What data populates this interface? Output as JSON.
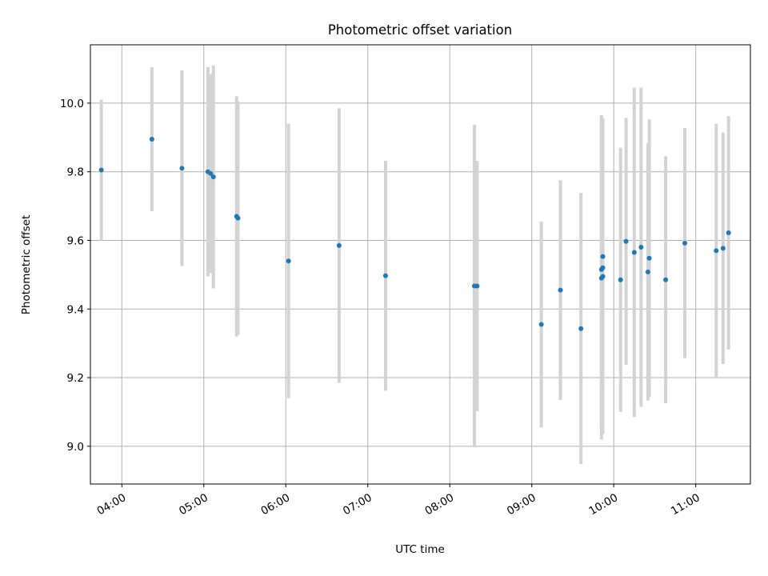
{
  "chart_data": {
    "type": "scatter",
    "title": "Photometric offset variation",
    "xlabel": "UTC time",
    "ylabel": "Photometric offset",
    "xlim": [
      "03:37",
      "11:40"
    ],
    "ylim": [
      8.89,
      10.17
    ],
    "grid": true,
    "x_ticks": [
      "04:00",
      "05:00",
      "06:00",
      "07:00",
      "08:00",
      "09:00",
      "10:00",
      "11:00"
    ],
    "y_ticks": [
      "9.0",
      "9.2",
      "9.4",
      "9.6",
      "9.8",
      "10.0"
    ],
    "colors": {
      "points": "#1f77b4",
      "errorbars": "#d3d3d3",
      "grid": "#b0b0b0"
    },
    "series": [
      {
        "points": [
          {
            "x": "03:45",
            "y": 9.805,
            "err": 0.205
          },
          {
            "x": "04:22",
            "y": 9.895,
            "err": 0.21
          },
          {
            "x": "04:44",
            "y": 9.81,
            "err": 0.285
          },
          {
            "x": "05:03",
            "y": 9.8,
            "err": 0.305
          },
          {
            "x": "05:05",
            "y": 9.795,
            "err": 0.29
          },
          {
            "x": "05:07",
            "y": 9.785,
            "err": 0.325
          },
          {
            "x": "05:24",
            "y": 9.67,
            "err": 0.35
          },
          {
            "x": "05:25",
            "y": 9.665,
            "err": 0.34
          },
          {
            "x": "06:02",
            "y": 9.54,
            "err": 0.4
          },
          {
            "x": "06:39",
            "y": 9.585,
            "err": 0.4
          },
          {
            "x": "07:13",
            "y": 9.497,
            "err": 0.335
          },
          {
            "x": "08:18",
            "y": 9.467,
            "err": 0.47
          },
          {
            "x": "08:20",
            "y": 9.467,
            "err": 0.365
          },
          {
            "x": "09:07",
            "y": 9.355,
            "err": 0.3
          },
          {
            "x": "09:21",
            "y": 9.455,
            "err": 0.32
          },
          {
            "x": "09:36",
            "y": 9.343,
            "err": 0.395
          },
          {
            "x": "09:51",
            "y": 9.49,
            "err": 0.47
          },
          {
            "x": "09:51",
            "y": 9.515,
            "err": 0.45
          },
          {
            "x": "09:52",
            "y": 9.495,
            "err": 0.46
          },
          {
            "x": "09:52",
            "y": 9.52,
            "err": 0.34
          },
          {
            "x": "09:52",
            "y": 9.553,
            "err": 0.4
          },
          {
            "x": "10:05",
            "y": 9.485,
            "err": 0.385
          },
          {
            "x": "10:09",
            "y": 9.597,
            "err": 0.36
          },
          {
            "x": "10:15",
            "y": 9.565,
            "err": 0.48
          },
          {
            "x": "10:20",
            "y": 9.58,
            "err": 0.465
          },
          {
            "x": "10:25",
            "y": 9.508,
            "err": 0.375
          },
          {
            "x": "10:26",
            "y": 9.548,
            "err": 0.405
          },
          {
            "x": "10:38",
            "y": 9.485,
            "err": 0.36
          },
          {
            "x": "10:52",
            "y": 9.592,
            "err": 0.335
          },
          {
            "x": "11:15",
            "y": 9.57,
            "err": 0.37
          },
          {
            "x": "11:20",
            "y": 9.577,
            "err": 0.337
          },
          {
            "x": "11:24",
            "y": 9.622,
            "err": 0.34
          }
        ]
      }
    ]
  }
}
